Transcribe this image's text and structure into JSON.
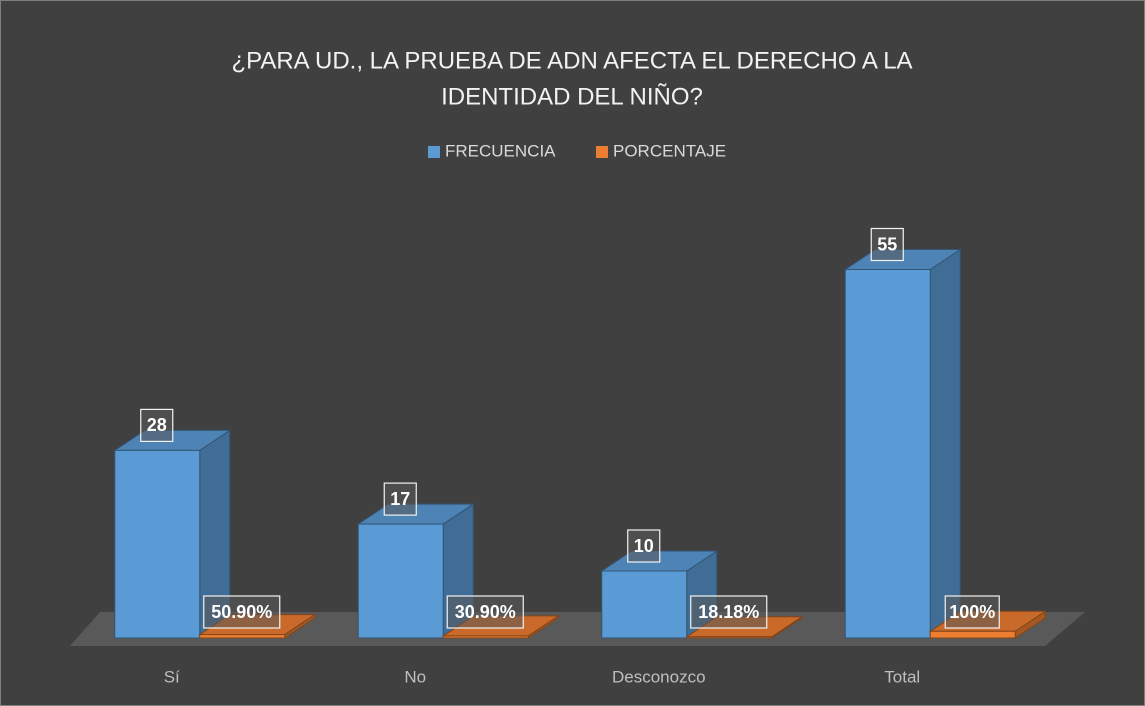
{
  "chart_data": {
    "type": "bar3d",
    "title": [
      "¿PARA UD., LA PRUEBA DE ADN AFECTA EL DERECHO A LA",
      "IDENTIDAD DEL NIÑO?"
    ],
    "categories": [
      "Sí",
      "No",
      "Desconozco",
      "Total"
    ],
    "series": [
      {
        "name": "FRECUENCIA",
        "color": "#5b9bd5",
        "values": [
          28,
          17,
          10,
          55
        ]
      },
      {
        "name": "PORCENTAJE",
        "color": "#ed7d31",
        "values": [
          0.509,
          0.309,
          0.1818,
          1
        ],
        "value_labels": [
          "50.90%",
          "30.90%",
          "18.18%",
          "100%"
        ]
      }
    ],
    "legend": "top"
  }
}
